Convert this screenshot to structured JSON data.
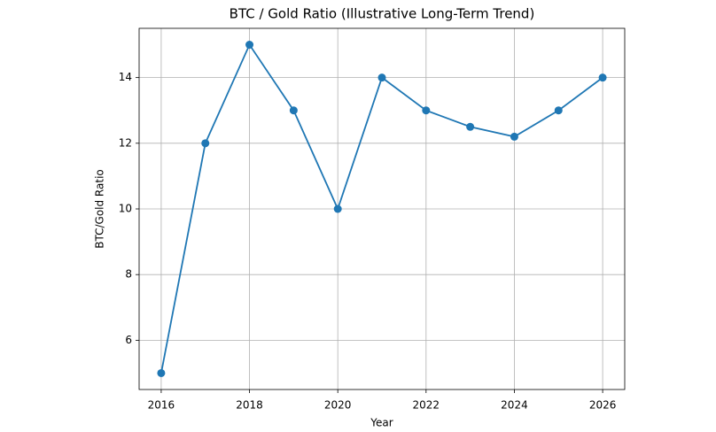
{
  "chart_data": {
    "type": "line",
    "title": "BTC / Gold Ratio (Illustrative Long-Term Trend)",
    "x_label": "Year",
    "y_label": "BTC/Gold Ratio",
    "x": [
      2016,
      2017,
      2018,
      2019,
      2020,
      2021,
      2022,
      2023,
      2024,
      2025,
      2026
    ],
    "values": [
      5,
      12,
      15,
      13,
      10,
      14,
      13,
      12.5,
      12.2,
      13,
      14
    ],
    "color": "#1f77b4",
    "xlim": [
      2015.5,
      2026.5
    ],
    "xticks": [
      2016,
      2018,
      2020,
      2022,
      2024,
      2026
    ],
    "ylim": [
      4.5,
      15.5
    ],
    "yticks": [
      6,
      8,
      10,
      12,
      14
    ],
    "grid": true,
    "markers": true
  }
}
